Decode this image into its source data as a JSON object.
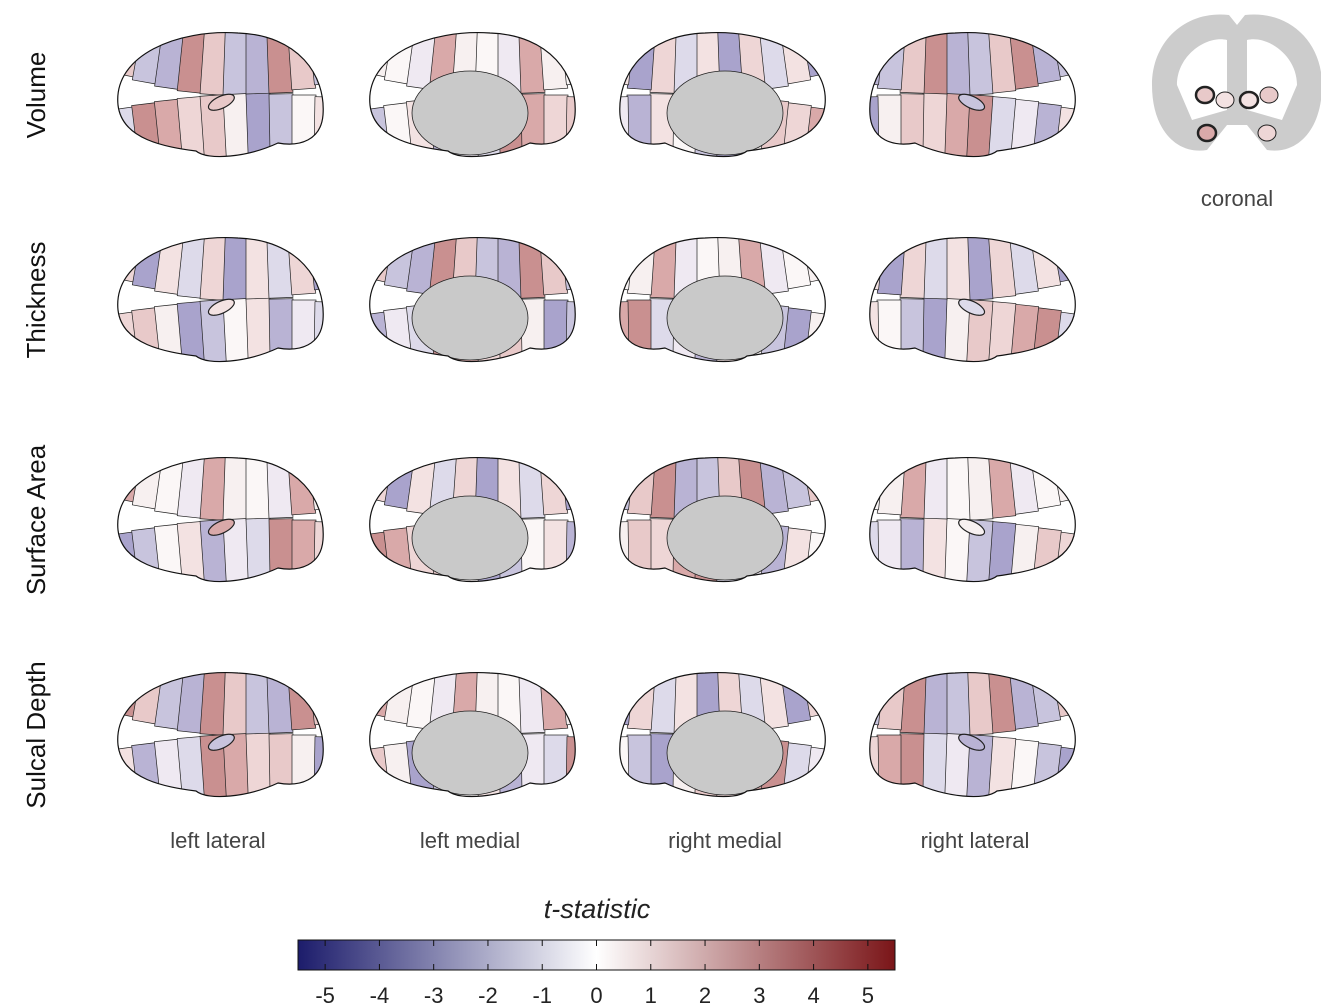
{
  "rows": [
    "Volume",
    "Thickness",
    "Surface Area",
    "Sulcal Depth"
  ],
  "columns": [
    "left lateral",
    "left medial",
    "right medial",
    "right lateral"
  ],
  "inset_label": "coronal",
  "colorbar": {
    "title": "t-statistic",
    "lim": [
      -5.5,
      5.5
    ],
    "ticks": [
      -5,
      -4,
      -3,
      -2,
      -1,
      0,
      1,
      2,
      3,
      4,
      5
    ],
    "colors": [
      "#1c1c6b",
      "#ffffff",
      "#7a1518"
    ]
  }
}
